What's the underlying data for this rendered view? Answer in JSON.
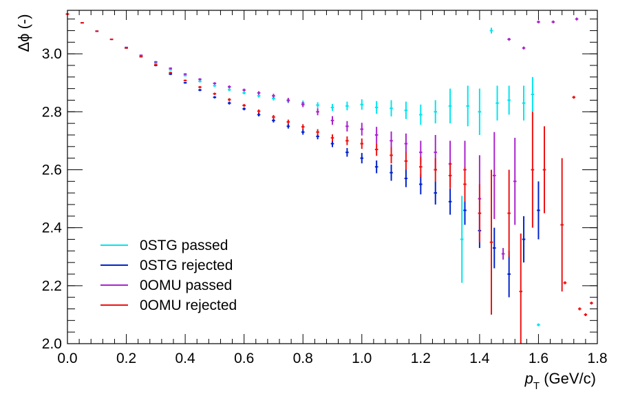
{
  "chart_data": {
    "type": "scatter",
    "ylabel": "Δϕ (-)",
    "xlabel": "p",
    "xlabel_sub": "T",
    "xlabel_units": "(GeV/c)",
    "xlim": [
      0.0,
      1.8
    ],
    "ylim": [
      2.0,
      3.15
    ],
    "x_ticks": [
      "0.0",
      "0.2",
      "0.4",
      "0.6",
      "0.8",
      "1.0",
      "1.2",
      "1.4",
      "1.6",
      "1.8"
    ],
    "y_ticks": [
      "2.0",
      "2.2",
      "2.4",
      "2.6",
      "2.8",
      "3.0"
    ],
    "grid": false,
    "legend_position": "bottom-left",
    "series": [
      {
        "name": "0STG passed",
        "color": "#00e5ee",
        "points": [
          [
            0.0,
            3.137,
            0.002
          ],
          [
            0.05,
            3.107,
            0.002
          ],
          [
            0.1,
            3.078,
            0.002
          ],
          [
            0.15,
            3.05,
            0.002
          ],
          [
            0.2,
            3.022,
            0.002
          ],
          [
            0.25,
            2.993,
            0.002
          ],
          [
            0.3,
            2.967,
            0.003
          ],
          [
            0.35,
            2.945,
            0.003
          ],
          [
            0.4,
            2.925,
            0.003
          ],
          [
            0.45,
            2.905,
            0.004
          ],
          [
            0.5,
            2.89,
            0.004
          ],
          [
            0.55,
            2.876,
            0.005
          ],
          [
            0.6,
            2.865,
            0.005
          ],
          [
            0.65,
            2.855,
            0.006
          ],
          [
            0.7,
            2.846,
            0.007
          ],
          [
            0.75,
            2.838,
            0.008
          ],
          [
            0.8,
            2.83,
            0.009
          ],
          [
            0.85,
            2.823,
            0.01
          ],
          [
            0.9,
            2.815,
            0.012
          ],
          [
            0.95,
            2.82,
            0.015
          ],
          [
            1.0,
            2.825,
            0.018
          ],
          [
            1.05,
            2.815,
            0.022
          ],
          [
            1.1,
            2.812,
            0.028
          ],
          [
            1.15,
            2.805,
            0.03
          ],
          [
            1.2,
            2.79,
            0.035
          ],
          [
            1.25,
            2.8,
            0.04
          ],
          [
            1.3,
            2.82,
            0.06
          ],
          [
            1.34,
            2.36,
            0.15
          ],
          [
            1.36,
            2.82,
            0.07
          ],
          [
            1.4,
            2.8,
            0.08
          ],
          [
            1.44,
            3.08,
            0.01
          ],
          [
            1.46,
            2.83,
            0.06
          ],
          [
            1.5,
            2.84,
            0.05
          ],
          [
            1.55,
            2.83,
            0.06
          ],
          [
            1.58,
            2.86,
            0.06
          ],
          [
            1.6,
            2.065,
            0.005
          ]
        ]
      },
      {
        "name": "0STG rejected",
        "color": "#0022cc",
        "points": [
          [
            0.0,
            3.137,
            0.002
          ],
          [
            0.05,
            3.107,
            0.002
          ],
          [
            0.1,
            3.078,
            0.002
          ],
          [
            0.15,
            3.05,
            0.002
          ],
          [
            0.2,
            3.02,
            0.002
          ],
          [
            0.25,
            2.99,
            0.002
          ],
          [
            0.3,
            2.96,
            0.003
          ],
          [
            0.35,
            2.93,
            0.003
          ],
          [
            0.4,
            2.9,
            0.003
          ],
          [
            0.45,
            2.875,
            0.004
          ],
          [
            0.5,
            2.85,
            0.004
          ],
          [
            0.55,
            2.83,
            0.005
          ],
          [
            0.6,
            2.81,
            0.005
          ],
          [
            0.65,
            2.79,
            0.006
          ],
          [
            0.7,
            2.77,
            0.007
          ],
          [
            0.75,
            2.75,
            0.008
          ],
          [
            0.8,
            2.73,
            0.009
          ],
          [
            0.85,
            2.715,
            0.01
          ],
          [
            0.9,
            2.69,
            0.012
          ],
          [
            0.95,
            2.66,
            0.015
          ],
          [
            1.0,
            2.64,
            0.018
          ],
          [
            1.05,
            2.61,
            0.022
          ],
          [
            1.1,
            2.59,
            0.028
          ],
          [
            1.15,
            2.57,
            0.03
          ],
          [
            1.2,
            2.55,
            0.035
          ],
          [
            1.25,
            2.52,
            0.04
          ],
          [
            1.3,
            2.49,
            0.045
          ],
          [
            1.35,
            2.46,
            0.05
          ],
          [
            1.4,
            2.39,
            0.06
          ],
          [
            1.45,
            2.33,
            0.07
          ],
          [
            1.5,
            2.24,
            0.08
          ],
          [
            1.55,
            2.36,
            0.08
          ],
          [
            1.6,
            2.46,
            0.1
          ]
        ]
      },
      {
        "name": "0OMU passed",
        "color": "#aa22cc",
        "points": [
          [
            0.0,
            3.137,
            0.002
          ],
          [
            0.05,
            3.107,
            0.002
          ],
          [
            0.1,
            3.078,
            0.002
          ],
          [
            0.15,
            3.05,
            0.002
          ],
          [
            0.2,
            3.022,
            0.002
          ],
          [
            0.25,
            2.995,
            0.002
          ],
          [
            0.3,
            2.972,
            0.003
          ],
          [
            0.35,
            2.95,
            0.003
          ],
          [
            0.4,
            2.93,
            0.003
          ],
          [
            0.45,
            2.912,
            0.004
          ],
          [
            0.5,
            2.898,
            0.004
          ],
          [
            0.55,
            2.886,
            0.005
          ],
          [
            0.6,
            2.875,
            0.005
          ],
          [
            0.65,
            2.865,
            0.006
          ],
          [
            0.7,
            2.855,
            0.007
          ],
          [
            0.75,
            2.84,
            0.008
          ],
          [
            0.8,
            2.825,
            0.009
          ],
          [
            0.85,
            2.8,
            0.012
          ],
          [
            0.9,
            2.77,
            0.015
          ],
          [
            0.95,
            2.75,
            0.018
          ],
          [
            1.0,
            2.74,
            0.022
          ],
          [
            1.05,
            2.72,
            0.028
          ],
          [
            1.1,
            2.7,
            0.032
          ],
          [
            1.15,
            2.69,
            0.035
          ],
          [
            1.2,
            2.66,
            0.04
          ],
          [
            1.25,
            2.66,
            0.06
          ],
          [
            1.3,
            2.62,
            0.08
          ],
          [
            1.35,
            2.6,
            0.1
          ],
          [
            1.4,
            2.5,
            0.15
          ],
          [
            1.45,
            2.58,
            0.15
          ],
          [
            1.48,
            2.31,
            0.02
          ],
          [
            1.5,
            3.05,
            0.005
          ],
          [
            1.52,
            2.56,
            0.15
          ],
          [
            1.55,
            3.02,
            0.005
          ],
          [
            1.6,
            3.11,
            0.005
          ],
          [
            1.65,
            3.11,
            0.005
          ],
          [
            1.73,
            3.12,
            0.005
          ]
        ]
      },
      {
        "name": "0OMU rejected",
        "color": "#ee1111",
        "points": [
          [
            0.0,
            3.137,
            0.002
          ],
          [
            0.05,
            3.107,
            0.002
          ],
          [
            0.1,
            3.078,
            0.002
          ],
          [
            0.15,
            3.05,
            0.002
          ],
          [
            0.2,
            3.02,
            0.002
          ],
          [
            0.25,
            2.99,
            0.002
          ],
          [
            0.3,
            2.962,
            0.003
          ],
          [
            0.35,
            2.935,
            0.003
          ],
          [
            0.4,
            2.908,
            0.003
          ],
          [
            0.45,
            2.885,
            0.004
          ],
          [
            0.5,
            2.862,
            0.004
          ],
          [
            0.55,
            2.842,
            0.005
          ],
          [
            0.6,
            2.822,
            0.005
          ],
          [
            0.65,
            2.802,
            0.006
          ],
          [
            0.7,
            2.782,
            0.007
          ],
          [
            0.75,
            2.765,
            0.008
          ],
          [
            0.8,
            2.748,
            0.009
          ],
          [
            0.85,
            2.73,
            0.01
          ],
          [
            0.9,
            2.71,
            0.012
          ],
          [
            0.95,
            2.7,
            0.015
          ],
          [
            1.0,
            2.69,
            0.018
          ],
          [
            1.05,
            2.67,
            0.022
          ],
          [
            1.1,
            2.65,
            0.028
          ],
          [
            1.15,
            2.63,
            0.03
          ],
          [
            1.2,
            2.61,
            0.035
          ],
          [
            1.25,
            2.6,
            0.04
          ],
          [
            1.3,
            2.58,
            0.045
          ],
          [
            1.35,
            2.55,
            0.06
          ],
          [
            1.4,
            2.45,
            0.1
          ],
          [
            1.44,
            2.35,
            0.25
          ],
          [
            1.5,
            2.45,
            0.15
          ],
          [
            1.54,
            2.18,
            0.2
          ],
          [
            1.58,
            2.6,
            0.2
          ],
          [
            1.62,
            2.6,
            0.15
          ],
          [
            1.68,
            2.41,
            0.23
          ],
          [
            1.69,
            2.21,
            0.005
          ],
          [
            1.72,
            2.85,
            0.005
          ],
          [
            1.74,
            2.12,
            0.005
          ],
          [
            1.76,
            2.1,
            0.005
          ],
          [
            1.78,
            2.14,
            0.005
          ]
        ]
      }
    ]
  }
}
